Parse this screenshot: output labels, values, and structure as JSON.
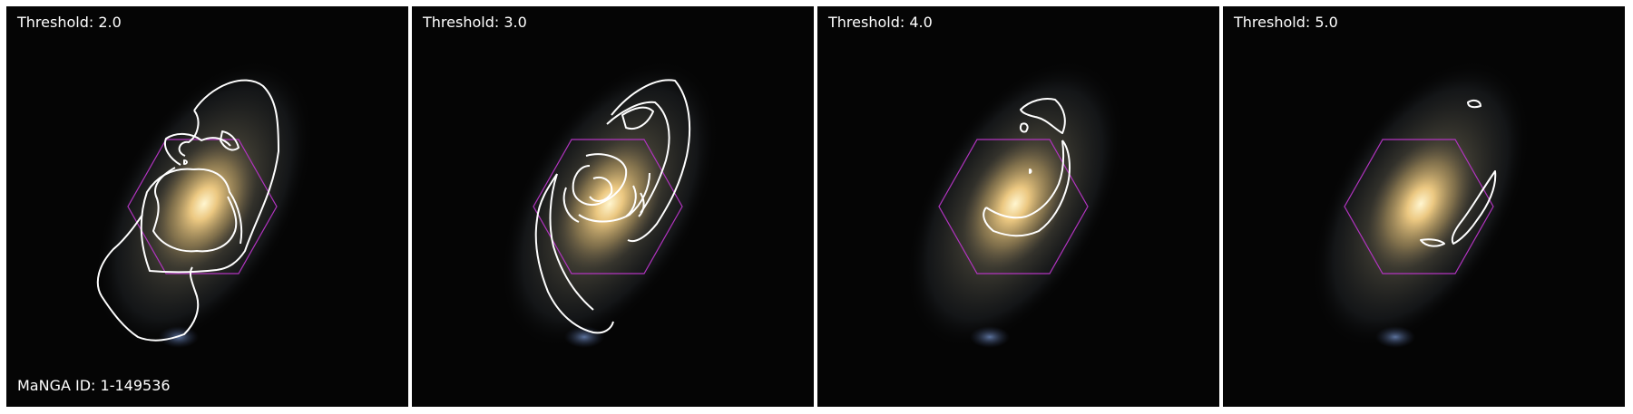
{
  "figure": {
    "panels": [
      {
        "threshold_label": "Threshold: 2.0",
        "galaxy_id": "MaNGA ID: 1-149536"
      },
      {
        "threshold_label": "Threshold: 3.0"
      },
      {
        "threshold_label": "Threshold: 4.0"
      },
      {
        "threshold_label": "Threshold: 5.0"
      }
    ]
  },
  "colors": {
    "background": "#050505",
    "contour": "#ffffff",
    "ifu_hexagon": "#b234c0",
    "galaxy_core": "#ffe9a8",
    "galaxy_halo": "#8a7a55"
  },
  "icons": {
    "ifu_footprint": "hexagon-outline",
    "spiral_contours": "contour-lines"
  }
}
